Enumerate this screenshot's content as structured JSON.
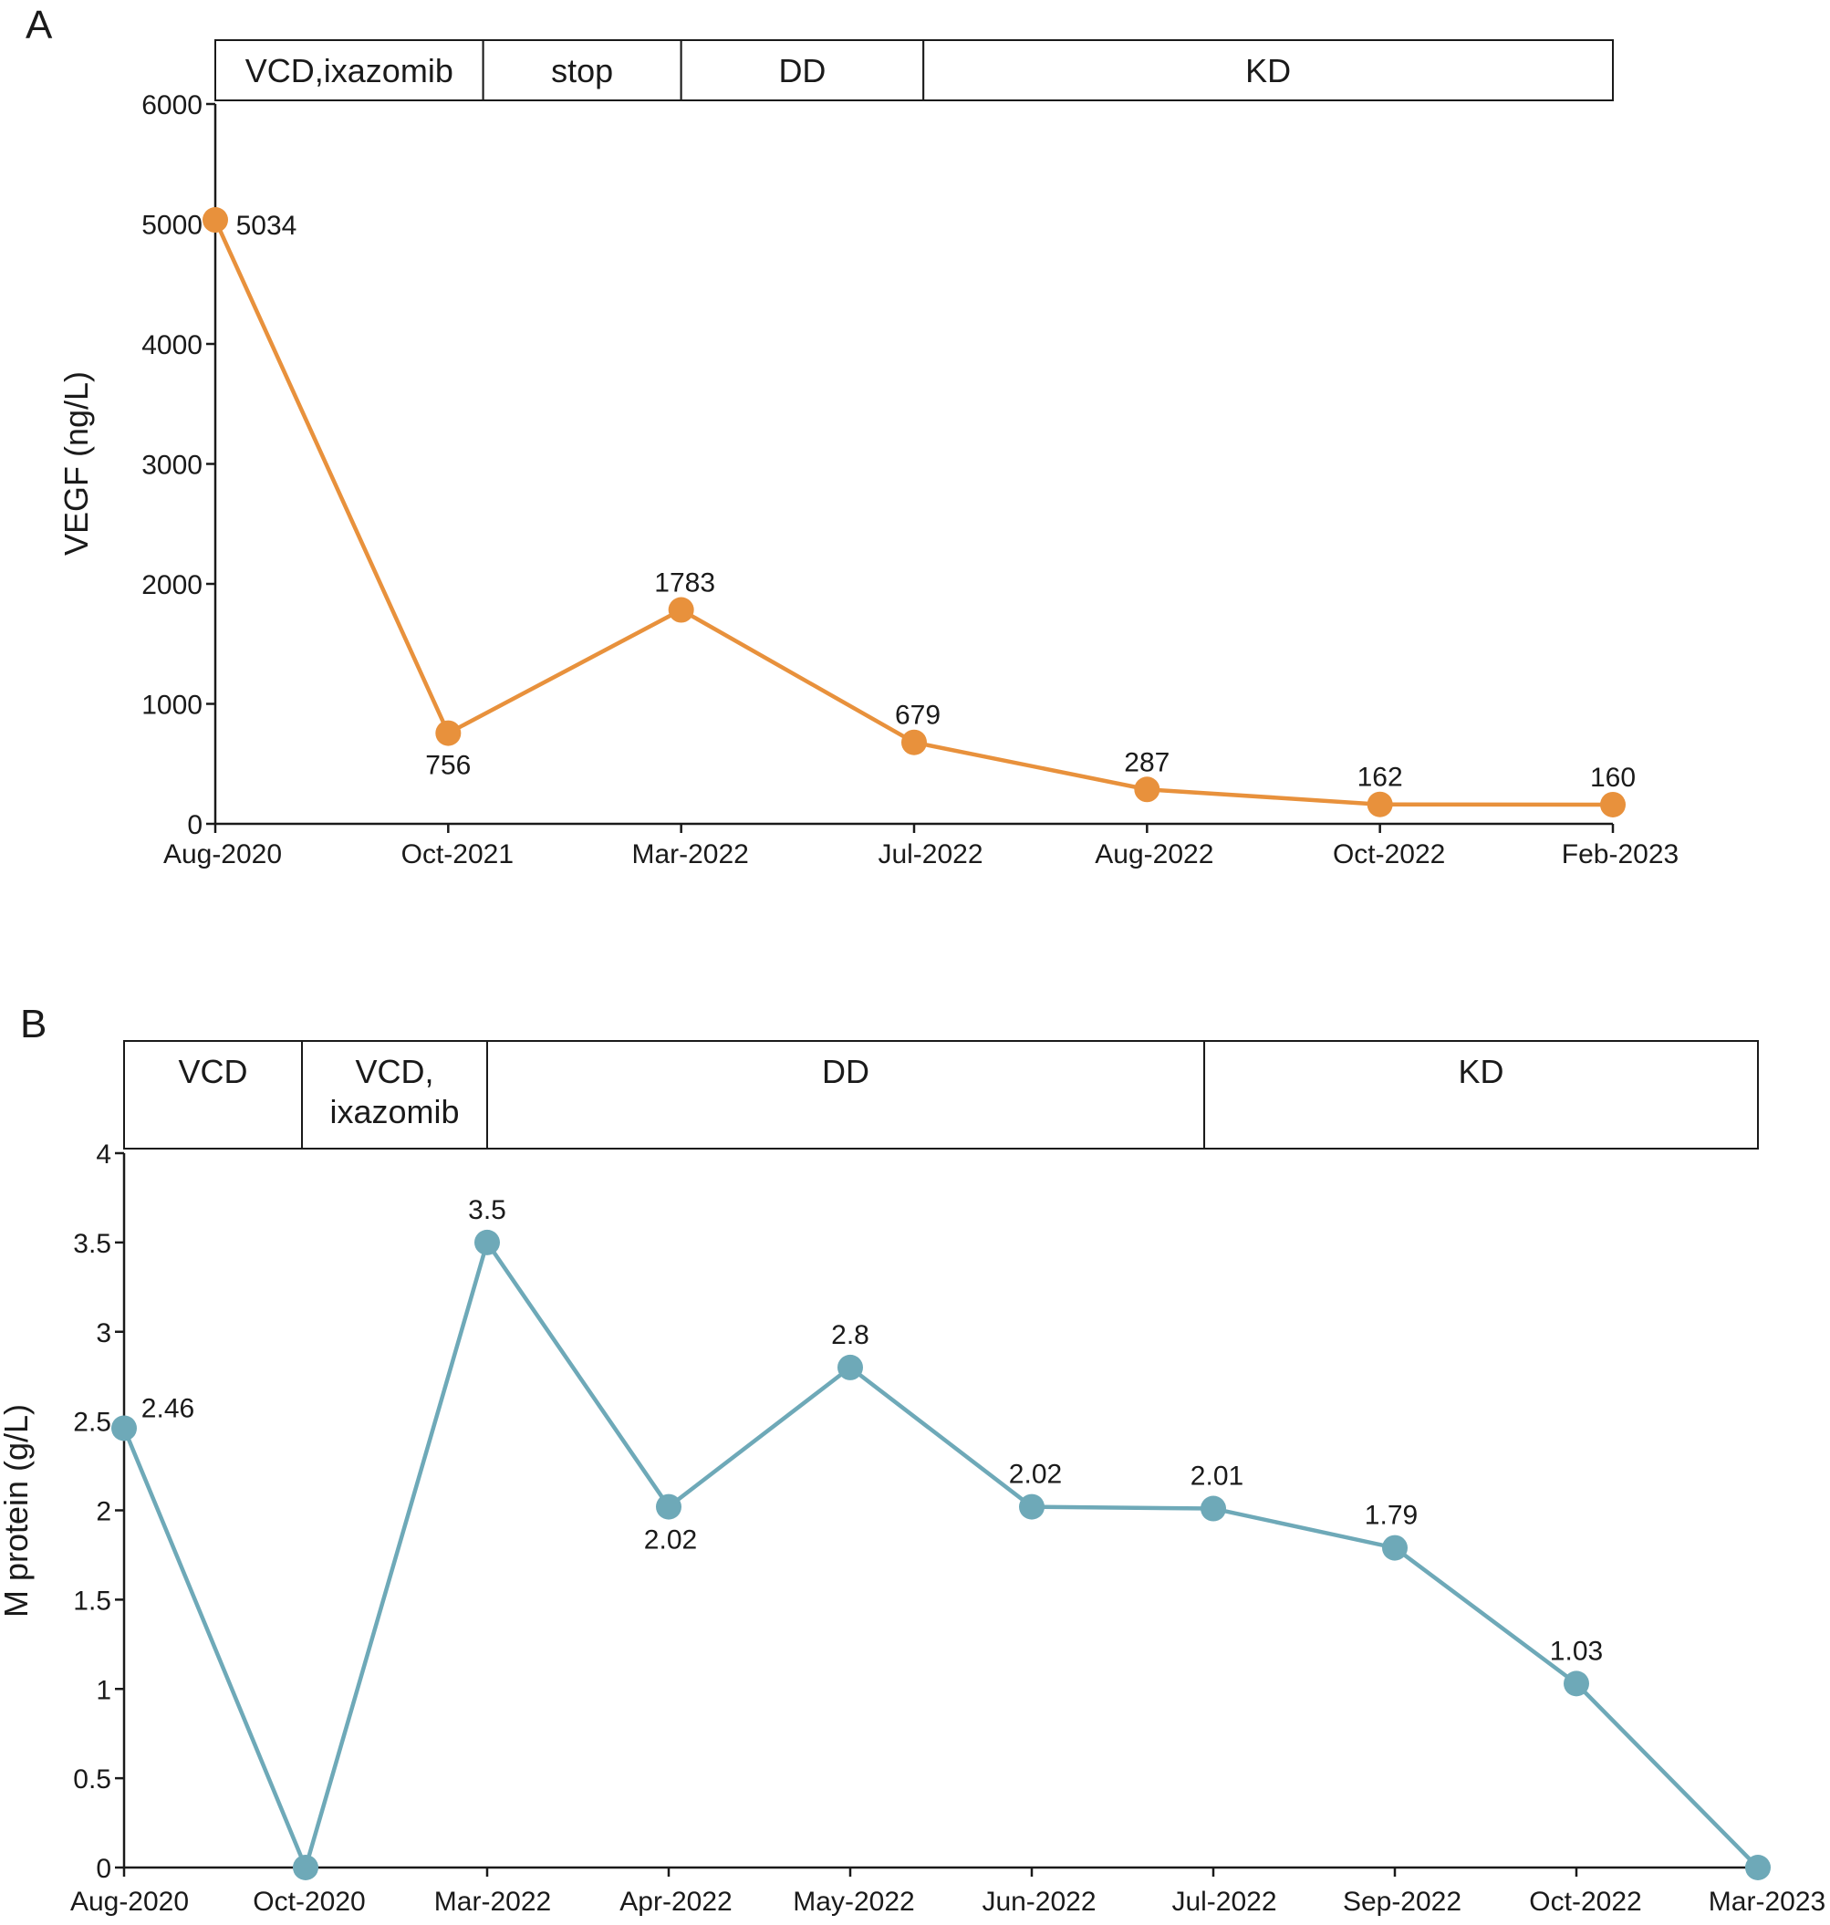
{
  "chart_data": [
    {
      "panel": "A",
      "type": "line",
      "ylabel": "VEGF (ng/L)",
      "xlabel": "",
      "ylim": [
        0,
        6000
      ],
      "yticks": [
        0,
        1000,
        2000,
        3000,
        4000,
        5000,
        6000
      ],
      "categories": [
        "Aug-2020",
        "Oct-2021",
        "Mar-2022",
        "Jul-2022",
        "Aug-2022",
        "Oct-2022",
        "Feb-2023"
      ],
      "values": [
        5034,
        756,
        1783,
        679,
        287,
        162,
        160
      ],
      "value_labels": [
        "5034",
        "756",
        "1783",
        "679",
        "287",
        "162",
        "160"
      ],
      "color": "#E8913C",
      "treatment_bands": [
        {
          "label": "VCD,ixazomib",
          "start": 0,
          "end": 1.15
        },
        {
          "label": "stop",
          "start": 1.15,
          "end": 2.0
        },
        {
          "label": "DD",
          "start": 2.0,
          "end": 3.04
        },
        {
          "label": "KD",
          "start": 3.04,
          "end": 6.0
        }
      ]
    },
    {
      "panel": "B",
      "type": "line",
      "ylabel": "M protein (g/L)",
      "xlabel": "",
      "ylim": [
        0,
        4
      ],
      "yticks": [
        0,
        0.5,
        1,
        1.5,
        2,
        2.5,
        3,
        3.5,
        4
      ],
      "ytick_labels": [
        "0",
        "0.5",
        "1",
        "1.5",
        "2",
        "2.5",
        "3",
        "3.5",
        "4"
      ],
      "categories": [
        "Aug-2020",
        "Oct-2020",
        "Mar-2022",
        "Apr-2022",
        "May-2022",
        "Jun-2022",
        "Jul-2022",
        "Sep-2022",
        "Oct-2022",
        "Mar-2023"
      ],
      "values": [
        2.46,
        0,
        3.5,
        2.02,
        2.8,
        2.02,
        2.01,
        1.79,
        1.03,
        0
      ],
      "value_labels": [
        "2.46",
        "",
        "3.5",
        "2.02",
        "2.8",
        "2.02",
        "2.01",
        "1.79",
        "1.03",
        ""
      ],
      "color": "#6EA9B8",
      "treatment_bands": [
        {
          "label": "VCD",
          "start": 0,
          "end": 0.98
        },
        {
          "label": "VCD,\nixazomib",
          "start": 0.98,
          "end": 2.0
        },
        {
          "label": "DD",
          "start": 2.0,
          "end": 5.95
        },
        {
          "label": "KD",
          "start": 5.95,
          "end": 9.0
        }
      ]
    }
  ]
}
